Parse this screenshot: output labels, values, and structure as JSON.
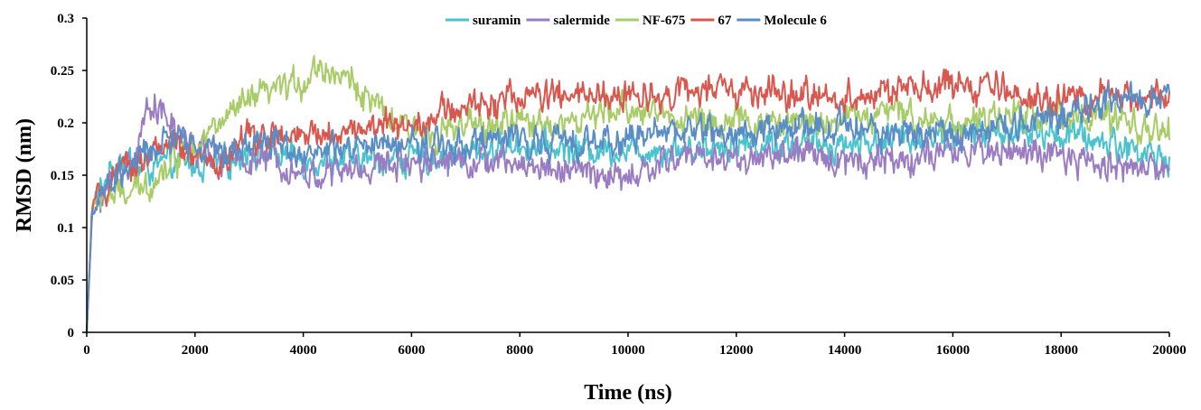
{
  "chart_data": {
    "type": "line",
    "title": "",
    "xlabel": "Time (ns)",
    "ylabel": "RMSD (nm)",
    "xlim": [
      0,
      20000
    ],
    "ylim": [
      0,
      0.3
    ],
    "x_ticks": [
      0,
      2000,
      4000,
      6000,
      8000,
      10000,
      12000,
      14000,
      16000,
      18000,
      20000
    ],
    "x_tick_labels": [
      "0",
      "2000",
      "4000",
      "6000",
      "8000",
      "10000",
      "12000",
      "14000",
      "16000",
      "18000",
      "20000"
    ],
    "y_ticks": [
      0,
      0.05,
      0.1,
      0.15,
      0.2,
      0.25,
      0.3
    ],
    "y_tick_labels": [
      "0",
      "0.05",
      "0.1",
      "0.15",
      "0.2",
      "0.25",
      "0.3"
    ],
    "grid": false,
    "legend_position": "top-center",
    "series": [
      {
        "name": "suramin",
        "color": "#4BC3CE",
        "x": [
          0,
          100,
          300,
          600,
          1000,
          1500,
          2000,
          2500,
          3000,
          3500,
          4000,
          5000,
          6000,
          7000,
          8000,
          9000,
          10000,
          11000,
          12000,
          13000,
          14000,
          15000,
          16000,
          17000,
          18000,
          19000,
          20000
        ],
        "y": [
          0,
          0.12,
          0.14,
          0.17,
          0.155,
          0.16,
          0.16,
          0.16,
          0.175,
          0.17,
          0.165,
          0.165,
          0.165,
          0.17,
          0.18,
          0.175,
          0.175,
          0.175,
          0.18,
          0.18,
          0.18,
          0.185,
          0.19,
          0.19,
          0.19,
          0.18,
          0.165
        ]
      },
      {
        "name": "salermide",
        "color": "#9A7CC2",
        "x": [
          0,
          100,
          300,
          600,
          900,
          1200,
          1500,
          2000,
          2500,
          3000,
          3500,
          4000,
          5000,
          6000,
          7000,
          8000,
          9000,
          10000,
          11000,
          12000,
          13000,
          14000,
          15000,
          16000,
          17000,
          18000,
          19000,
          20000
        ],
        "y": [
          0,
          0.12,
          0.135,
          0.15,
          0.17,
          0.225,
          0.2,
          0.175,
          0.165,
          0.165,
          0.165,
          0.15,
          0.155,
          0.165,
          0.165,
          0.16,
          0.155,
          0.145,
          0.17,
          0.165,
          0.17,
          0.165,
          0.165,
          0.17,
          0.175,
          0.165,
          0.16,
          0.155
        ]
      },
      {
        "name": "NF-675",
        "color": "#A8CC68",
        "x": [
          0,
          100,
          300,
          600,
          1000,
          1500,
          2000,
          2500,
          3000,
          3500,
          4000,
          4300,
          4700,
          5000,
          5500,
          6000,
          7000,
          8000,
          9000,
          10000,
          11000,
          12000,
          13000,
          14000,
          15000,
          16000,
          17000,
          18000,
          19000,
          20000
        ],
        "y": [
          0,
          0.115,
          0.13,
          0.13,
          0.135,
          0.16,
          0.18,
          0.2,
          0.22,
          0.23,
          0.24,
          0.255,
          0.245,
          0.235,
          0.205,
          0.19,
          0.195,
          0.2,
          0.2,
          0.215,
          0.205,
          0.2,
          0.2,
          0.205,
          0.21,
          0.2,
          0.205,
          0.21,
          0.2,
          0.19
        ]
      },
      {
        "name": "67",
        "color": "#D8574F",
        "x": [
          0,
          100,
          300,
          600,
          1000,
          1500,
          2000,
          2500,
          3000,
          3500,
          4000,
          5000,
          6000,
          7000,
          8000,
          9000,
          10000,
          11000,
          12000,
          13000,
          14000,
          15000,
          16000,
          17000,
          18000,
          19000,
          20000
        ],
        "y": [
          0,
          0.12,
          0.135,
          0.15,
          0.165,
          0.18,
          0.165,
          0.16,
          0.19,
          0.185,
          0.185,
          0.195,
          0.2,
          0.215,
          0.225,
          0.225,
          0.225,
          0.23,
          0.23,
          0.225,
          0.225,
          0.23,
          0.235,
          0.23,
          0.22,
          0.225,
          0.225
        ]
      },
      {
        "name": "Molecule 6",
        "color": "#5A8DC6",
        "x": [
          0,
          100,
          300,
          600,
          1000,
          1500,
          2000,
          2500,
          3000,
          3500,
          4000,
          5000,
          6000,
          7000,
          8000,
          9000,
          10000,
          11000,
          12000,
          13000,
          14000,
          15000,
          16000,
          17000,
          18000,
          18500,
          19000,
          19500,
          20000
        ],
        "y": [
          0,
          0.115,
          0.13,
          0.15,
          0.165,
          0.185,
          0.18,
          0.17,
          0.18,
          0.185,
          0.17,
          0.175,
          0.18,
          0.18,
          0.185,
          0.18,
          0.185,
          0.195,
          0.19,
          0.195,
          0.195,
          0.19,
          0.19,
          0.2,
          0.205,
          0.215,
          0.22,
          0.225,
          0.225
        ]
      }
    ]
  }
}
